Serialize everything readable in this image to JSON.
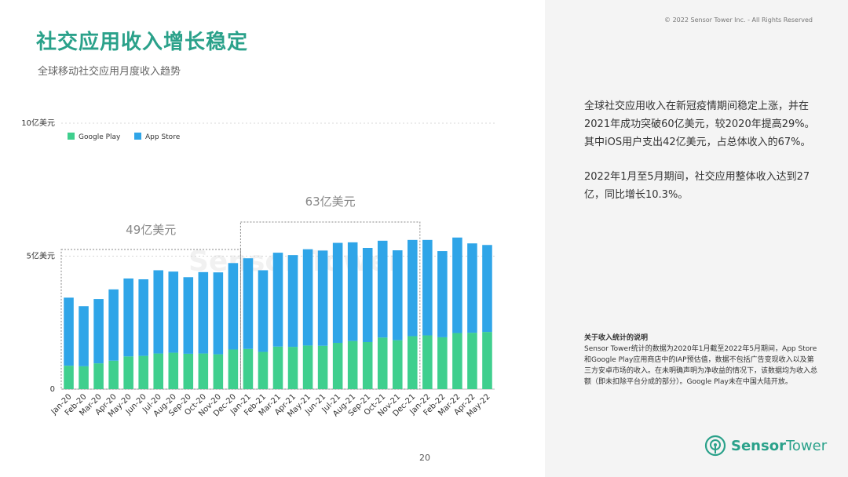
{
  "header": {
    "title": "社交应用收入增长稳定",
    "subtitle": "全球移动社交应用月度收入趋势",
    "copyright": "© 2022 Sensor Tower Inc. - All Rights Reserved"
  },
  "summary": {
    "p1": "全球社交应用收入在新冠疫情期间稳定上涨，并在2021年成功突破60亿美元，较2020年提高29%。其中iOS用户支出42亿美元，占总体收入的67%。",
    "p2": "2022年1月至5月期间，社交应用整体收入达到27亿，同比增长10.3%。"
  },
  "note": {
    "title": "关于收入统计的说明",
    "body": "Sensor Tower统计的数据为2020年1月截至2022年5月期间，App Store和Google Play应用商店中的IAP预估值，数据不包括广告变现收入以及第三方安卓市场的收入。在未明确声明为净收益的情况下，该数据均为收入总额（即未扣除平台分成的部分）。Google Play未在中国大陆开放。"
  },
  "footer": {
    "page_number": "20",
    "logo_name": "Sensor Tower",
    "logo_word1": "Sensor",
    "logo_word2": "Tower",
    "logo_icon": "sensor-tower-logo-icon"
  },
  "colors": {
    "google_play": "#3fcf8e",
    "app_store": "#2fa5e8",
    "accent": "#2aa18a"
  },
  "chart_data": {
    "type": "bar",
    "stacked": true,
    "categories": [
      "Jan-20",
      "Feb-20",
      "Mar-20",
      "Apr-20",
      "May-20",
      "Jun-20",
      "Jul-20",
      "Aug-20",
      "Sep-20",
      "Oct-20",
      "Nov-20",
      "Dec-20",
      "Jan-21",
      "Feb-21",
      "Mar-21",
      "Apr-21",
      "May-21",
      "Jun-21",
      "Jul-21",
      "Aug-21",
      "Sep-21",
      "Oct-21",
      "Nov-21",
      "Dec-21",
      "Jan-22",
      "Feb-22",
      "Mar-22",
      "Apr-22",
      "May-22"
    ],
    "series": [
      {
        "name": "Google Play",
        "values": [
          0.88,
          0.86,
          0.97,
          1.07,
          1.23,
          1.25,
          1.34,
          1.37,
          1.33,
          1.34,
          1.31,
          1.49,
          1.51,
          1.4,
          1.6,
          1.59,
          1.64,
          1.63,
          1.74,
          1.81,
          1.77,
          1.94,
          1.84,
          1.99,
          2.02,
          1.95,
          2.11,
          2.12,
          2.15
        ]
      },
      {
        "name": "App Store",
        "values": [
          2.56,
          2.26,
          2.42,
          2.68,
          2.93,
          2.88,
          3.13,
          3.05,
          2.88,
          3.06,
          3.08,
          3.25,
          3.41,
          3.07,
          3.53,
          3.45,
          3.62,
          3.58,
          3.76,
          3.71,
          3.54,
          3.64,
          3.38,
          3.62,
          3.59,
          3.24,
          3.59,
          3.36,
          3.27
        ]
      }
    ],
    "y_ticks": [
      {
        "value": 0,
        "label": "0"
      },
      {
        "value": 5,
        "label": "5亿美元"
      },
      {
        "value": 10,
        "label": "10亿美元"
      }
    ],
    "ylim": [
      0,
      10
    ],
    "legend": {
      "placement": "top-left"
    },
    "annotations": [
      {
        "label": "49亿美元",
        "from": "Jan-20",
        "to": "Dec-20"
      },
      {
        "label": "63亿美元",
        "from": "Jan-21",
        "to": "Dec-21"
      }
    ],
    "watermark": "Sensor Tower"
  }
}
